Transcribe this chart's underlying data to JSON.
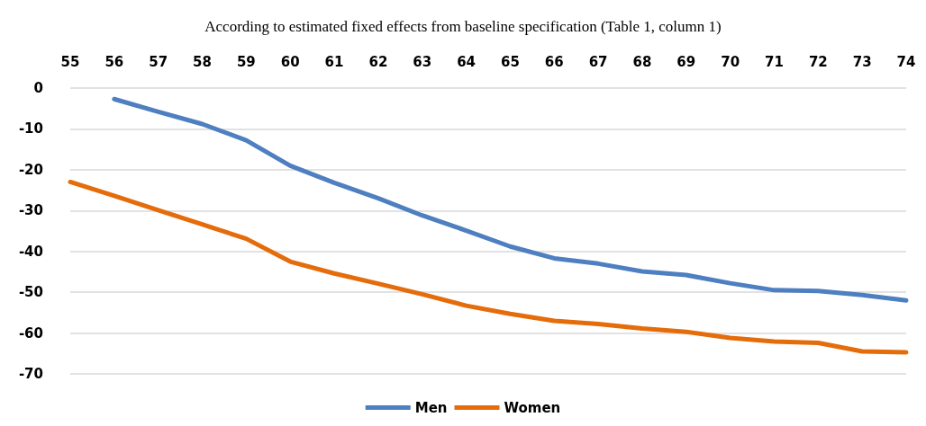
{
  "chart_data": {
    "type": "line",
    "title": "According to estimated fixed effects from baseline specification (Table 1, column 1)",
    "categories": [
      "55",
      "56",
      "57",
      "58",
      "59",
      "60",
      "61",
      "62",
      "63",
      "64",
      "65",
      "66",
      "67",
      "68",
      "69",
      "70",
      "71",
      "72",
      "73",
      "74"
    ],
    "series": [
      {
        "name": "Men",
        "color": "#4e7fc0",
        "values": [
          null,
          -2.7,
          -5.8,
          -8.8,
          -12.8,
          -19,
          -23.2,
          -27,
          -31.2,
          -34.9,
          -38.8,
          -41.7,
          -43,
          -44.9,
          -45.8,
          -47.8,
          -49.5,
          -49.7,
          -50.7,
          -52
        ]
      },
      {
        "name": "Women",
        "color": "#e46c0a",
        "values": [
          -23,
          -26.4,
          -29.9,
          -33.4,
          -36.9,
          -42.5,
          -45.4,
          -47.9,
          -50.5,
          -53.3,
          -55.3,
          -57,
          -57.8,
          -58.9,
          -59.7,
          -61.2,
          -62.1,
          -62.4,
          -64.5,
          -64.7
        ]
      }
    ],
    "ylim": [
      -70,
      0
    ],
    "yticks": [
      0,
      -10,
      -20,
      -30,
      -40,
      -50,
      -60,
      -70
    ],
    "grid": "y",
    "legend": "bottom",
    "marker": "none",
    "line_style": "solid"
  }
}
